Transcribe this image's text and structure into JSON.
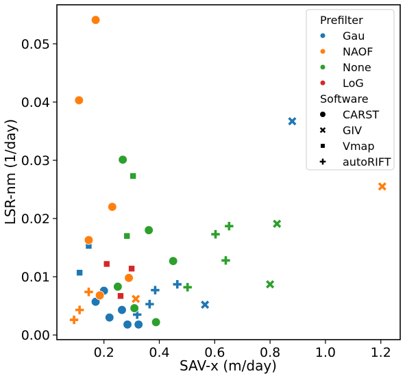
{
  "chart_data": {
    "type": "scatter",
    "title": "",
    "xlabel": "SAV-x (m/day)",
    "ylabel": "LSR-nm (1/day)",
    "xlim": [
      0.03,
      1.27
    ],
    "ylim": [
      -0.0008,
      0.0567
    ],
    "xticks": [
      {
        "value": 0.2,
        "label": "0.2"
      },
      {
        "value": 0.4,
        "label": "0.4"
      },
      {
        "value": 0.6,
        "label": "0.6"
      },
      {
        "value": 0.8,
        "label": "0.8"
      },
      {
        "value": 1.0,
        "label": "1.0"
      },
      {
        "value": 1.2,
        "label": "1.2"
      }
    ],
    "yticks": [
      {
        "value": 0.0,
        "label": "0.00"
      },
      {
        "value": 0.01,
        "label": "0.01"
      },
      {
        "value": 0.02,
        "label": "0.02"
      },
      {
        "value": 0.03,
        "label": "0.03"
      },
      {
        "value": 0.04,
        "label": "0.04"
      },
      {
        "value": 0.05,
        "label": "0.05"
      }
    ],
    "grid": false,
    "legend": {
      "placement": "top-right",
      "hue_title": "Prefilter",
      "style_title": "Software",
      "hue_entries": [
        {
          "name": "Gau",
          "color": "#1f77b4"
        },
        {
          "name": "NAOF",
          "color": "#ff7f0e"
        },
        {
          "name": "None",
          "color": "#2ca02c"
        },
        {
          "name": "LoG",
          "color": "#d62728"
        }
      ],
      "style_entries": [
        {
          "name": "CARST",
          "marker": "circle"
        },
        {
          "name": "GIV",
          "marker": "x"
        },
        {
          "name": "Vmap",
          "marker": "square"
        },
        {
          "name": "autoRIFT",
          "marker": "plus"
        }
      ]
    },
    "points": [
      {
        "prefilter": "Gau",
        "software": "CARST",
        "x": 0.2,
        "y": 0.0076
      },
      {
        "prefilter": "Gau",
        "software": "CARST",
        "x": 0.17,
        "y": 0.0057
      },
      {
        "prefilter": "Gau",
        "software": "CARST",
        "x": 0.22,
        "y": 0.003
      },
      {
        "prefilter": "Gau",
        "software": "CARST",
        "x": 0.265,
        "y": 0.0043
      },
      {
        "prefilter": "Gau",
        "software": "CARST",
        "x": 0.285,
        "y": 0.0018
      },
      {
        "prefilter": "Gau",
        "software": "CARST",
        "x": 0.325,
        "y": 0.0018
      },
      {
        "prefilter": "Gau",
        "software": "GIV",
        "x": 0.88,
        "y": 0.0367
      },
      {
        "prefilter": "Gau",
        "software": "GIV",
        "x": 0.565,
        "y": 0.0052
      },
      {
        "prefilter": "Gau",
        "software": "Vmap",
        "x": 0.145,
        "y": 0.0153
      },
      {
        "prefilter": "Gau",
        "software": "Vmap",
        "x": 0.112,
        "y": 0.0107
      },
      {
        "prefilter": "Gau",
        "software": "autoRIFT",
        "x": 0.385,
        "y": 0.0077
      },
      {
        "prefilter": "Gau",
        "software": "autoRIFT",
        "x": 0.465,
        "y": 0.0087
      },
      {
        "prefilter": "Gau",
        "software": "autoRIFT",
        "x": 0.365,
        "y": 0.0053
      },
      {
        "prefilter": "Gau",
        "software": "autoRIFT",
        "x": 0.32,
        "y": 0.0035
      },
      {
        "prefilter": "NAOF",
        "software": "CARST",
        "x": 0.17,
        "y": 0.0541
      },
      {
        "prefilter": "NAOF",
        "software": "CARST",
        "x": 0.11,
        "y": 0.0403
      },
      {
        "prefilter": "NAOF",
        "software": "CARST",
        "x": 0.23,
        "y": 0.022
      },
      {
        "prefilter": "NAOF",
        "software": "CARST",
        "x": 0.145,
        "y": 0.0163
      },
      {
        "prefilter": "NAOF",
        "software": "CARST",
        "x": 0.29,
        "y": 0.0098
      },
      {
        "prefilter": "NAOF",
        "software": "CARST",
        "x": 0.185,
        "y": 0.0068
      },
      {
        "prefilter": "NAOF",
        "software": "GIV",
        "x": 1.205,
        "y": 0.0255
      },
      {
        "prefilter": "NAOF",
        "software": "GIV",
        "x": 0.315,
        "y": 0.0062
      },
      {
        "prefilter": "NAOF",
        "software": "autoRIFT",
        "x": 0.145,
        "y": 0.0074
      },
      {
        "prefilter": "NAOF",
        "software": "autoRIFT",
        "x": 0.112,
        "y": 0.0043
      },
      {
        "prefilter": "NAOF",
        "software": "autoRIFT",
        "x": 0.092,
        "y": 0.0026
      },
      {
        "prefilter": "None",
        "software": "CARST",
        "x": 0.268,
        "y": 0.0301
      },
      {
        "prefilter": "None",
        "software": "CARST",
        "x": 0.362,
        "y": 0.018
      },
      {
        "prefilter": "None",
        "software": "CARST",
        "x": 0.45,
        "y": 0.0127
      },
      {
        "prefilter": "None",
        "software": "CARST",
        "x": 0.25,
        "y": 0.0083
      },
      {
        "prefilter": "None",
        "software": "CARST",
        "x": 0.31,
        "y": 0.0046
      },
      {
        "prefilter": "None",
        "software": "CARST",
        "x": 0.388,
        "y": 0.0022
      },
      {
        "prefilter": "None",
        "software": "GIV",
        "x": 0.825,
        "y": 0.0191
      },
      {
        "prefilter": "None",
        "software": "GIV",
        "x": 0.8,
        "y": 0.0087
      },
      {
        "prefilter": "None",
        "software": "Vmap",
        "x": 0.305,
        "y": 0.0273
      },
      {
        "prefilter": "None",
        "software": "Vmap",
        "x": 0.283,
        "y": 0.017
      },
      {
        "prefilter": "None",
        "software": "autoRIFT",
        "x": 0.652,
        "y": 0.0187
      },
      {
        "prefilter": "None",
        "software": "autoRIFT",
        "x": 0.603,
        "y": 0.0173
      },
      {
        "prefilter": "None",
        "software": "autoRIFT",
        "x": 0.64,
        "y": 0.0128
      },
      {
        "prefilter": "None",
        "software": "autoRIFT",
        "x": 0.502,
        "y": 0.0082
      },
      {
        "prefilter": "LoG",
        "software": "Vmap",
        "x": 0.21,
        "y": 0.0122
      },
      {
        "prefilter": "LoG",
        "software": "Vmap",
        "x": 0.3,
        "y": 0.0114
      },
      {
        "prefilter": "LoG",
        "software": "Vmap",
        "x": 0.26,
        "y": 0.0067
      }
    ]
  }
}
